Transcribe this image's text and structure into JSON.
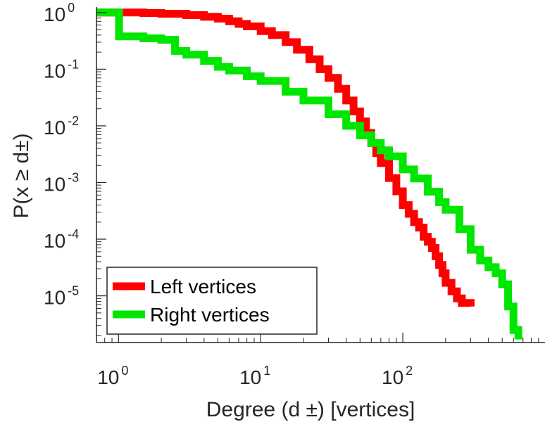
{
  "chart_data": {
    "type": "line",
    "title": "",
    "xlabel": "Degree (d  ±) [vertices]",
    "ylabel": "P(x ≥ d±)",
    "xscale": "log",
    "yscale": "log",
    "xlim": [
      0.7,
      1000
    ],
    "ylim": [
      1.5e-06,
      1.25
    ],
    "grid": false,
    "legend_position": "bottom-left",
    "x_ticks": [
      {
        "value": 1,
        "base": "10",
        "exp": "0"
      },
      {
        "value": 10,
        "base": "10",
        "exp": "1"
      },
      {
        "value": 100,
        "base": "10",
        "exp": "2"
      }
    ],
    "y_ticks": [
      {
        "value": 1,
        "base": "10",
        "exp": "0"
      },
      {
        "value": 0.1,
        "base": "10",
        "exp": "-1"
      },
      {
        "value": 0.01,
        "base": "10",
        "exp": "-2"
      },
      {
        "value": 0.001,
        "base": "10",
        "exp": "-3"
      },
      {
        "value": 0.0001,
        "base": "10",
        "exp": "-4"
      },
      {
        "value": 1e-05,
        "base": "10",
        "exp": "-5"
      }
    ],
    "series": [
      {
        "name": "Left vertices",
        "color": "#ff0000",
        "x": [
          0.7,
          1,
          1.5,
          2,
          3,
          4,
          5,
          6,
          7,
          8,
          10,
          12,
          15,
          18,
          22,
          26,
          30,
          35,
          40,
          45,
          50,
          55,
          60,
          65,
          70,
          80,
          90,
          100,
          110,
          120,
          130,
          140,
          150,
          160,
          170,
          180,
          190,
          200,
          220,
          240,
          260,
          300
        ],
        "y": [
          1,
          1,
          0.98,
          0.95,
          0.9,
          0.84,
          0.78,
          0.7,
          0.63,
          0.57,
          0.47,
          0.4,
          0.3,
          0.22,
          0.15,
          0.1,
          0.07,
          0.045,
          0.028,
          0.018,
          0.012,
          0.0075,
          0.005,
          0.0033,
          0.0022,
          0.0012,
          0.0007,
          0.0004,
          0.00028,
          0.0002,
          0.00016,
          0.00011,
          9e-05,
          7e-05,
          5e-05,
          3.5e-05,
          2.5e-05,
          1.7e-05,
          1.2e-05,
          9e-06,
          7.5e-06,
          6.5e-06
        ]
      },
      {
        "name": "Right vertices",
        "color": "#00e600",
        "x": [
          0.7,
          1,
          1.01,
          1.5,
          2,
          2.5,
          3,
          4,
          5,
          6,
          8,
          10,
          15,
          20,
          30,
          40,
          50,
          60,
          70,
          80,
          100,
          120,
          150,
          180,
          200,
          250,
          300,
          350,
          400,
          450,
          500,
          550,
          600,
          650
        ],
        "y": [
          1,
          1,
          0.38,
          0.35,
          0.33,
          0.21,
          0.18,
          0.14,
          0.11,
          0.095,
          0.075,
          0.062,
          0.04,
          0.028,
          0.016,
          0.01,
          0.0068,
          0.005,
          0.0037,
          0.0029,
          0.0017,
          0.00118,
          0.00069,
          0.00045,
          0.00033,
          0.00015,
          6.5e-05,
          4.2e-05,
          3.2e-05,
          2.5e-05,
          1.6e-05,
          6.5e-06,
          2.5e-06,
          1.7e-06
        ]
      }
    ]
  }
}
